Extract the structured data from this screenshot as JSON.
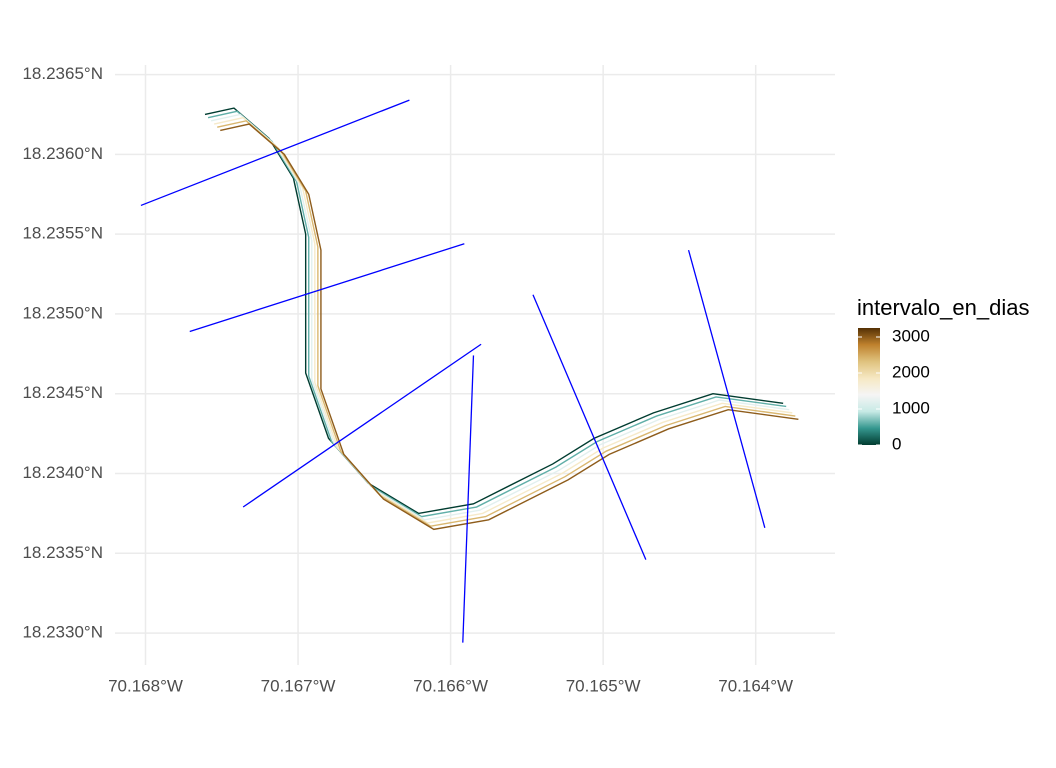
{
  "chart_data": {
    "type": "line",
    "xlim": [
      -70.1682,
      -70.16348
    ],
    "ylim": [
      18.2328,
      18.23656
    ],
    "xticks": [
      {
        "value": -70.168,
        "label": "70.168°W"
      },
      {
        "value": -70.167,
        "label": "70.167°W"
      },
      {
        "value": -70.166,
        "label": "70.166°W"
      },
      {
        "value": -70.165,
        "label": "70.165°W"
      },
      {
        "value": -70.164,
        "label": "70.164°W"
      }
    ],
    "yticks": [
      {
        "value": 18.233,
        "label": "18.2330°N"
      },
      {
        "value": 18.2335,
        "label": "18.2335°N"
      },
      {
        "value": 18.234,
        "label": "18.2340°N"
      },
      {
        "value": 18.2345,
        "label": "18.2345°N"
      },
      {
        "value": 18.235,
        "label": "18.2350°N"
      },
      {
        "value": 18.2355,
        "label": "18.2355°N"
      },
      {
        "value": 18.236,
        "label": "18.2360°N"
      },
      {
        "value": 18.2365,
        "label": "18.2365°N"
      }
    ],
    "grid": true,
    "colorbar": {
      "title": "intervalo_en_dias",
      "clim": [
        0,
        3250
      ],
      "ticks": [
        0,
        1000,
        2000,
        3000
      ],
      "colors": [
        "#003c30",
        "#35978f",
        "#c7eae5",
        "#f5f5f5",
        "#f6e8c3",
        "#dfc27d",
        "#bf812d",
        "#543005"
      ]
    },
    "series": [
      {
        "intervalo_en_dias": 0,
        "x": [
          -70.16761,
          -70.16742,
          -70.16719,
          -70.16703,
          -70.16695,
          -70.16695,
          -70.16695,
          -70.1668,
          -70.16654,
          -70.16621,
          -70.16585,
          -70.16533,
          -70.16506,
          -70.16467,
          -70.16428,
          -70.16382
        ],
        "values": [
          18.23625,
          18.23629,
          18.2361,
          18.23585,
          18.2355,
          18.23513,
          18.23463,
          18.23422,
          18.23394,
          18.23375,
          18.23381,
          18.23406,
          18.23422,
          18.23438,
          18.2345,
          18.23444
        ]
      },
      {
        "intervalo_en_dias": 600,
        "x": [
          -70.16759,
          -70.1674,
          -70.16717,
          -70.16701,
          -70.16693,
          -70.16693,
          -70.16693,
          -70.16678,
          -70.16652,
          -70.16619,
          -70.16583,
          -70.16531,
          -70.16504,
          -70.16465,
          -70.16426,
          -70.1638
        ],
        "values": [
          18.23623,
          18.23627,
          18.23608,
          18.23583,
          18.23548,
          18.23511,
          18.23461,
          18.2342,
          18.23392,
          18.23373,
          18.23379,
          18.23404,
          18.2342,
          18.23436,
          18.23448,
          18.23442
        ]
      },
      {
        "intervalo_en_dias": 1200,
        "x": [
          -70.16757,
          -70.16738,
          -70.16715,
          -70.16699,
          -70.16691,
          -70.16691,
          -70.16691,
          -70.16676,
          -70.1665,
          -70.16617,
          -70.16581,
          -70.16529,
          -70.16502,
          -70.16463,
          -70.16424,
          -70.16378
        ],
        "values": [
          18.23621,
          18.23625,
          18.23606,
          18.23581,
          18.23546,
          18.23509,
          18.23459,
          18.23418,
          18.2339,
          18.23371,
          18.23377,
          18.23402,
          18.23418,
          18.23434,
          18.23446,
          18.2344
        ]
      },
      {
        "intervalo_en_dias": 1800,
        "x": [
          -70.16755,
          -70.16736,
          -70.16713,
          -70.16697,
          -70.16689,
          -70.16689,
          -70.16689,
          -70.16674,
          -70.16648,
          -70.16615,
          -70.16579,
          -70.16527,
          -70.165,
          -70.16461,
          -70.16422,
          -70.16376
        ],
        "values": [
          18.23619,
          18.23623,
          18.23604,
          18.23579,
          18.23544,
          18.23507,
          18.23457,
          18.23416,
          18.23388,
          18.23369,
          18.23375,
          18.234,
          18.23416,
          18.23432,
          18.23444,
          18.23438
        ]
      },
      {
        "intervalo_en_dias": 2400,
        "x": [
          -70.16753,
          -70.16734,
          -70.16711,
          -70.16695,
          -70.16687,
          -70.16687,
          -70.16687,
          -70.16672,
          -70.16646,
          -70.16613,
          -70.16577,
          -70.16525,
          -70.16498,
          -70.16459,
          -70.1642,
          -70.16374
        ],
        "values": [
          18.23617,
          18.23621,
          18.23602,
          18.23577,
          18.23542,
          18.23505,
          18.23455,
          18.23414,
          18.23386,
          18.23367,
          18.23373,
          18.23398,
          18.23414,
          18.2343,
          18.23442,
          18.23436
        ]
      },
      {
        "intervalo_en_dias": 3000,
        "x": [
          -70.16751,
          -70.16732,
          -70.16709,
          -70.16693,
          -70.16685,
          -70.16685,
          -70.16685,
          -70.1667,
          -70.16644,
          -70.16611,
          -70.16575,
          -70.16523,
          -70.16496,
          -70.16457,
          -70.16418,
          -70.16372
        ],
        "values": [
          18.23615,
          18.23619,
          18.236,
          18.23575,
          18.2354,
          18.23503,
          18.23453,
          18.23412,
          18.23384,
          18.23365,
          18.23371,
          18.23396,
          18.23412,
          18.23428,
          18.2344,
          18.23434
        ]
      }
    ],
    "transect_color": "#0000ff",
    "transects": [
      {
        "x": [
          -70.16803,
          -70.16627
        ],
        "values": [
          18.23568,
          18.23634
        ]
      },
      {
        "x": [
          -70.16771,
          -70.16591
        ],
        "values": [
          18.23489,
          18.23544
        ]
      },
      {
        "x": [
          -70.16736,
          -70.1658
        ],
        "values": [
          18.23379,
          18.23481
        ]
      },
      {
        "x": [
          -70.16585,
          -70.16592
        ],
        "values": [
          18.23474,
          18.23294
        ]
      },
      {
        "x": [
          -70.16546,
          -70.16472
        ],
        "values": [
          18.23512,
          18.23346
        ]
      },
      {
        "x": [
          -70.16444,
          -70.16394
        ],
        "values": [
          18.2354,
          18.23366
        ]
      }
    ]
  }
}
